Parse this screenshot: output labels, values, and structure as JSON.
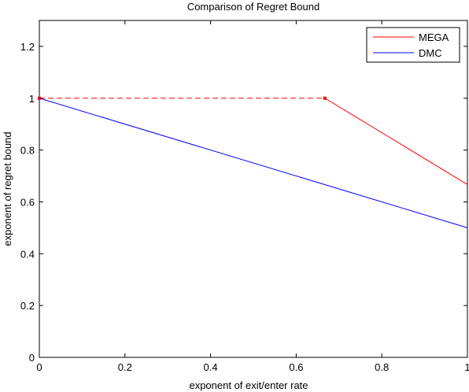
{
  "chart_data": {
    "type": "line",
    "title": "Comparison of Regret Bound",
    "xlabel": "exponent of exit/enter rate",
    "ylabel": "exponent of regret bound",
    "xlim": [
      0,
      1
    ],
    "ylim": [
      0,
      1.3
    ],
    "xticks": [
      0,
      0.2,
      0.4,
      0.6,
      0.8,
      1
    ],
    "xtick_labels": [
      "0",
      "0.2",
      "0.4",
      "0.6",
      "0.8",
      "1"
    ],
    "yticks": [
      0,
      0.2,
      0.4,
      0.6,
      0.8,
      1,
      1.2
    ],
    "ytick_labels": [
      "0",
      "0.2",
      "0.4",
      "0.6",
      "0.8",
      "1",
      "1.2"
    ],
    "grid": false,
    "legend_placement": "top-right",
    "series": [
      {
        "name": "MEGA",
        "color": "#ff0000",
        "segments": [
          {
            "style": "dashed",
            "x": [
              0,
              0.667
            ],
            "y": [
              1,
              1
            ]
          },
          {
            "style": "solid",
            "x": [
              0.667,
              1
            ],
            "y": [
              1,
              0.667
            ]
          }
        ],
        "markers": [
          {
            "x": 0,
            "y": 1
          },
          {
            "x": 0.667,
            "y": 1
          }
        ]
      },
      {
        "name": "DMC",
        "color": "#0000ff",
        "segments": [
          {
            "style": "solid",
            "x": [
              0,
              1
            ],
            "y": [
              1,
              0.5
            ]
          }
        ],
        "markers": []
      }
    ]
  }
}
